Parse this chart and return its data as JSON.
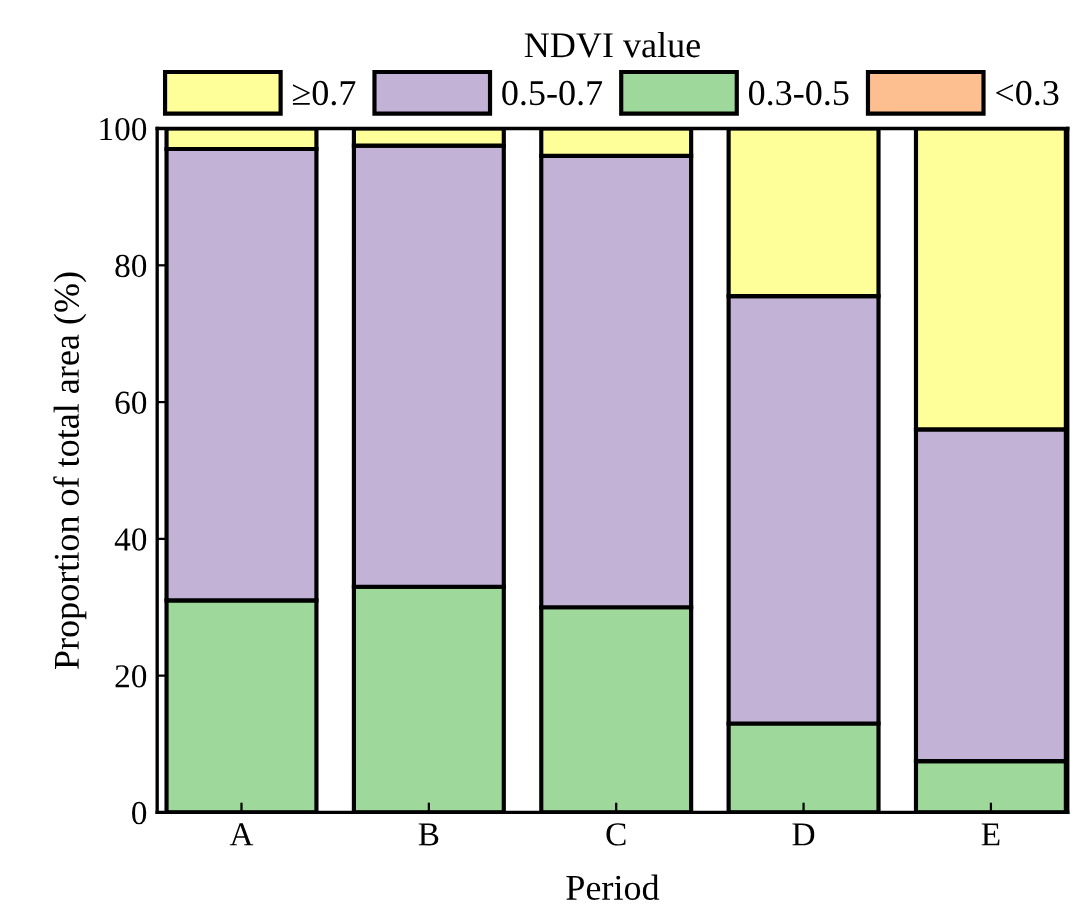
{
  "chart_data": {
    "type": "bar",
    "stacked": true,
    "xlabel": "Period",
    "ylabel": "Proportion of total area (%)",
    "legend_title": "NDVI value",
    "legend": "top",
    "categories": [
      "A",
      "B",
      "C",
      "D",
      "E"
    ],
    "series": [
      {
        "name": "<0.3",
        "color": "#fdbf8f",
        "values": [
          0,
          0,
          0,
          0,
          0
        ]
      },
      {
        "name": "0.3-0.5",
        "color": "#9fd89b",
        "values": [
          31,
          33,
          30,
          13,
          7.5
        ]
      },
      {
        "name": "0.5-0.7",
        "color": "#c2b2d6",
        "values": [
          66,
          64.5,
          66,
          62.5,
          48.5
        ]
      },
      {
        "name": "≥0.7",
        "color": "#ffff99",
        "values": [
          3,
          2.5,
          4,
          24.5,
          44
        ]
      }
    ],
    "ylim": [
      0,
      100
    ],
    "yticks": [
      0,
      20,
      40,
      60,
      80,
      100
    ],
    "grid": false
  }
}
